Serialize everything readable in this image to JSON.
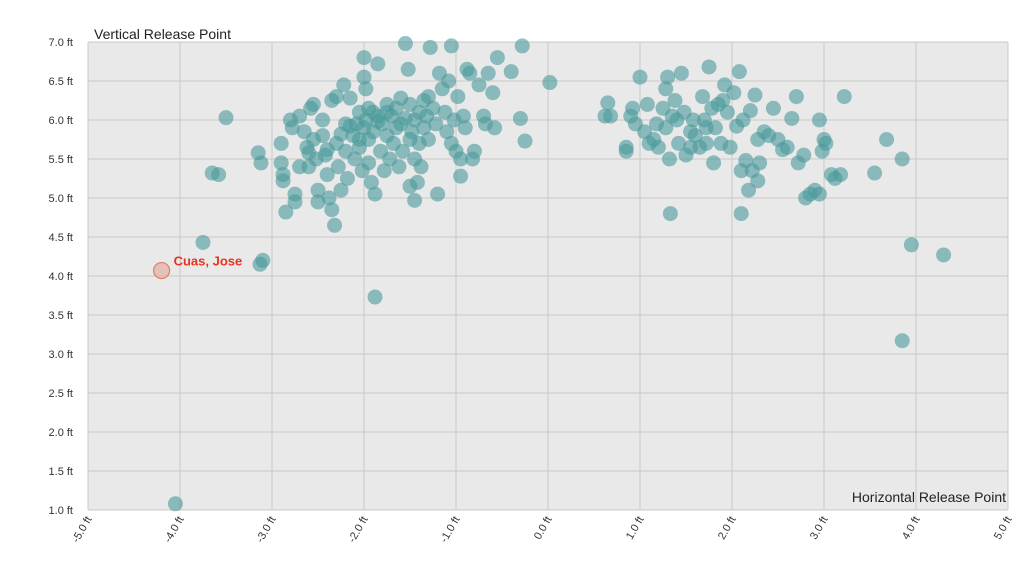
{
  "chart_data": {
    "type": "scatter",
    "xlabel": "Horizontal Release Point",
    "ylabel": "Vertical Release Point",
    "xlim": [
      -5.0,
      5.0
    ],
    "ylim": [
      1.0,
      7.0
    ],
    "grid": true,
    "x_ticks": [
      "-5.0 ft",
      "-4.0 ft",
      "-3.0 ft",
      "-2.0 ft",
      "-1.0 ft",
      "0.0 ft",
      "1.0 ft",
      "2.0 ft",
      "3.0 ft",
      "4.0 ft",
      "5.0 ft"
    ],
    "y_ticks": [
      "1.0 ft",
      "1.5 ft",
      "2.0 ft",
      "2.5 ft",
      "3.0 ft",
      "3.5 ft",
      "4.0 ft",
      "4.5 ft",
      "5.0 ft",
      "5.5 ft",
      "6.0 ft",
      "6.5 ft",
      "7.0 ft"
    ],
    "colors": {
      "point": "#4a9a9b",
      "highlight_fill": "#e0b4a9",
      "highlight_stroke": "#e07d66",
      "highlight_text": "#e8341c",
      "plot_bg": "#e9e9e9"
    },
    "highlight": {
      "label": "Cuas, Jose",
      "x": -4.2,
      "y": 4.07
    },
    "points": [
      [
        -3.5,
        6.03
      ],
      [
        -3.65,
        5.32
      ],
      [
        -3.58,
        5.3
      ],
      [
        -3.75,
        4.43
      ],
      [
        -3.15,
        5.58
      ],
      [
        -3.12,
        5.45
      ],
      [
        -3.1,
        4.2
      ],
      [
        -3.13,
        4.15
      ],
      [
        -4.05,
        1.08
      ],
      [
        -2.9,
        5.7
      ],
      [
        -2.9,
        5.45
      ],
      [
        -2.88,
        5.3
      ],
      [
        -2.88,
        5.22
      ],
      [
        -2.85,
        4.82
      ],
      [
        -2.8,
        6.0
      ],
      [
        -2.78,
        5.9
      ],
      [
        -2.75,
        5.05
      ],
      [
        -2.75,
        4.95
      ],
      [
        -2.7,
        6.05
      ],
      [
        -2.7,
        5.4
      ],
      [
        -2.65,
        5.85
      ],
      [
        -2.62,
        5.65
      ],
      [
        -2.6,
        5.4
      ],
      [
        -2.58,
        6.15
      ],
      [
        -2.55,
        6.2
      ],
      [
        -2.55,
        5.75
      ],
      [
        -2.52,
        5.5
      ],
      [
        -2.5,
        5.1
      ],
      [
        -2.5,
        4.95
      ],
      [
        -2.45,
        6.0
      ],
      [
        -2.45,
        5.8
      ],
      [
        -2.42,
        5.55
      ],
      [
        -2.4,
        5.3
      ],
      [
        -2.38,
        5.0
      ],
      [
        -2.35,
        6.25
      ],
      [
        -2.35,
        4.85
      ],
      [
        -2.32,
        4.65
      ],
      [
        -2.3,
        6.3
      ],
      [
        -2.3,
        5.7
      ],
      [
        -2.28,
        5.4
      ],
      [
        -2.25,
        5.1
      ],
      [
        -2.22,
        6.45
      ],
      [
        -2.2,
        5.95
      ],
      [
        -2.2,
        5.6
      ],
      [
        -2.18,
        5.25
      ],
      [
        -2.15,
        6.28
      ],
      [
        -2.12,
        5.8
      ],
      [
        -2.1,
        5.5
      ],
      [
        -2.08,
        5.95
      ],
      [
        -2.05,
        6.1
      ],
      [
        -2.05,
        5.65
      ],
      [
        -2.02,
        5.35
      ],
      [
        -2.0,
        6.8
      ],
      [
        -2.0,
        6.55
      ],
      [
        -2.0,
        5.9
      ],
      [
        -1.98,
        6.4
      ],
      [
        -1.98,
        6.0
      ],
      [
        -1.95,
        5.75
      ],
      [
        -1.95,
        5.45
      ],
      [
        -1.92,
        5.2
      ],
      [
        -1.9,
        6.1
      ],
      [
        -1.9,
        5.85
      ],
      [
        -1.88,
        5.05
      ],
      [
        -1.88,
        3.73
      ],
      [
        -1.85,
        6.72
      ],
      [
        -1.85,
        6.05
      ],
      [
        -1.82,
        5.6
      ],
      [
        -1.8,
        5.95
      ],
      [
        -1.78,
        5.35
      ],
      [
        -1.75,
        6.2
      ],
      [
        -1.75,
        5.8
      ],
      [
        -1.72,
        5.5
      ],
      [
        -1.7,
        6.05
      ],
      [
        -1.68,
        5.7
      ],
      [
        -1.65,
        6.15
      ],
      [
        -1.65,
        5.9
      ],
      [
        -1.62,
        5.4
      ],
      [
        -1.6,
        5.95
      ],
      [
        -1.58,
        5.6
      ],
      [
        -1.55,
        6.02
      ],
      [
        -1.52,
        6.65
      ],
      [
        -1.5,
        6.2
      ],
      [
        -1.5,
        5.75
      ],
      [
        -1.5,
        5.15
      ],
      [
        -1.48,
        5.85
      ],
      [
        -1.45,
        6.0
      ],
      [
        -1.45,
        5.5
      ],
      [
        -1.45,
        4.97
      ],
      [
        -1.42,
        5.2
      ],
      [
        -1.4,
        6.1
      ],
      [
        -1.4,
        5.7
      ],
      [
        -1.38,
        5.4
      ],
      [
        -1.35,
        6.25
      ],
      [
        -1.35,
        5.9
      ],
      [
        -1.32,
        6.05
      ],
      [
        -1.3,
        6.3
      ],
      [
        -1.3,
        5.75
      ],
      [
        -1.28,
        6.93
      ],
      [
        -1.25,
        6.15
      ],
      [
        -1.22,
        5.95
      ],
      [
        -1.2,
        5.05
      ],
      [
        -1.18,
        6.6
      ],
      [
        -1.15,
        6.4
      ],
      [
        -1.12,
        6.1
      ],
      [
        -1.1,
        5.85
      ],
      [
        -1.08,
        6.5
      ],
      [
        -1.05,
        6.95
      ],
      [
        -1.05,
        5.7
      ],
      [
        -1.02,
        6.0
      ],
      [
        -1.0,
        5.6
      ],
      [
        -0.98,
        6.3
      ],
      [
        -0.95,
        5.5
      ],
      [
        -0.95,
        5.28
      ],
      [
        -0.92,
        6.05
      ],
      [
        -0.9,
        5.9
      ],
      [
        -0.88,
        6.65
      ],
      [
        -0.85,
        6.6
      ],
      [
        -0.82,
        5.5
      ],
      [
        -0.8,
        5.6
      ],
      [
        -0.75,
        6.45
      ],
      [
        -0.7,
        6.05
      ],
      [
        -0.68,
        5.95
      ],
      [
        -0.65,
        6.6
      ],
      [
        -0.6,
        6.35
      ],
      [
        -0.58,
        5.9
      ],
      [
        -0.55,
        6.8
      ],
      [
        -0.4,
        6.62
      ],
      [
        -0.3,
        6.02
      ],
      [
        -0.25,
        5.73
      ],
      [
        -0.28,
        6.95
      ],
      [
        -1.55,
        6.98
      ],
      [
        -1.6,
        6.28
      ],
      [
        -1.75,
        6.1
      ],
      [
        -1.85,
        5.98
      ],
      [
        -1.95,
        6.15
      ],
      [
        -2.05,
        5.75
      ],
      [
        -2.15,
        5.92
      ],
      [
        -2.25,
        5.82
      ],
      [
        -2.4,
        5.62
      ],
      [
        -2.6,
        5.58
      ],
      [
        0.02,
        6.48
      ],
      [
        0.65,
        6.22
      ],
      [
        0.62,
        6.05
      ],
      [
        0.68,
        6.05
      ],
      [
        0.85,
        5.65
      ],
      [
        0.85,
        5.6
      ],
      [
        0.9,
        6.05
      ],
      [
        0.92,
        6.15
      ],
      [
        0.95,
        5.95
      ],
      [
        1.0,
        6.55
      ],
      [
        1.05,
        5.85
      ],
      [
        1.08,
        6.2
      ],
      [
        1.1,
        5.7
      ],
      [
        1.15,
        5.75
      ],
      [
        1.18,
        5.95
      ],
      [
        1.2,
        5.65
      ],
      [
        1.25,
        6.15
      ],
      [
        1.28,
        6.4
      ],
      [
        1.3,
        6.55
      ],
      [
        1.32,
        5.5
      ],
      [
        1.35,
        6.05
      ],
      [
        1.38,
        6.25
      ],
      [
        1.4,
        6.0
      ],
      [
        1.42,
        5.7
      ],
      [
        1.45,
        6.6
      ],
      [
        1.48,
        6.1
      ],
      [
        1.5,
        5.55
      ],
      [
        1.55,
        5.85
      ],
      [
        1.58,
        6.0
      ],
      [
        1.6,
        5.8
      ],
      [
        1.65,
        5.65
      ],
      [
        1.68,
        6.3
      ],
      [
        1.7,
        6.0
      ],
      [
        1.72,
        5.7
      ],
      [
        1.75,
        6.68
      ],
      [
        1.78,
        6.15
      ],
      [
        1.8,
        5.45
      ],
      [
        1.82,
        5.9
      ],
      [
        1.85,
        6.2
      ],
      [
        1.88,
        5.7
      ],
      [
        1.9,
        6.25
      ],
      [
        1.92,
        6.45
      ],
      [
        1.95,
        6.1
      ],
      [
        1.98,
        5.65
      ],
      [
        2.02,
        6.35
      ],
      [
        2.05,
        5.92
      ],
      [
        2.08,
        6.62
      ],
      [
        2.1,
        5.35
      ],
      [
        2.12,
        6.0
      ],
      [
        2.15,
        5.48
      ],
      [
        2.18,
        5.1
      ],
      [
        2.2,
        6.12
      ],
      [
        2.22,
        5.35
      ],
      [
        2.25,
        6.32
      ],
      [
        2.28,
        5.22
      ],
      [
        2.3,
        5.45
      ],
      [
        2.35,
        5.85
      ],
      [
        2.4,
        5.8
      ],
      [
        2.45,
        6.15
      ],
      [
        2.5,
        5.75
      ],
      [
        2.55,
        5.62
      ],
      [
        2.6,
        5.65
      ],
      [
        2.65,
        6.02
      ],
      [
        2.7,
        6.3
      ],
      [
        2.72,
        5.45
      ],
      [
        2.78,
        5.55
      ],
      [
        2.8,
        5.0
      ],
      [
        2.85,
        5.05
      ],
      [
        2.9,
        5.1
      ],
      [
        2.95,
        6.0
      ],
      [
        2.95,
        5.05
      ],
      [
        2.98,
        5.6
      ],
      [
        3.0,
        5.75
      ],
      [
        3.02,
        5.7
      ],
      [
        3.08,
        5.3
      ],
      [
        3.12,
        5.25
      ],
      [
        3.18,
        5.3
      ],
      [
        3.22,
        6.3
      ],
      [
        3.55,
        5.32
      ],
      [
        3.68,
        5.75
      ],
      [
        3.85,
        5.5
      ],
      [
        3.85,
        3.17
      ],
      [
        3.95,
        4.4
      ],
      [
        4.3,
        4.27
      ],
      [
        1.33,
        4.8
      ],
      [
        2.1,
        4.8
      ],
      [
        1.55,
        5.65
      ],
      [
        1.72,
        5.9
      ],
      [
        2.28,
        5.75
      ],
      [
        1.28,
        5.9
      ]
    ]
  }
}
